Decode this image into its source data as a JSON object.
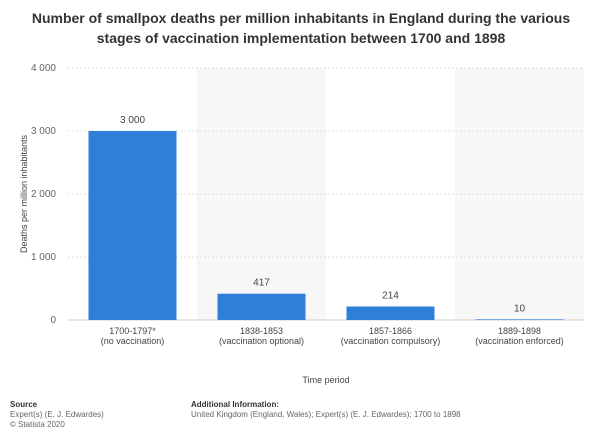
{
  "chart_data": {
    "type": "bar",
    "title": "Number of smallpox deaths per million inhabitants in England during the various stages of vaccination implementation between 1700 and 1898",
    "title_lines": [
      "Number of smallpox deaths per million inhabitants in England during the various",
      "stages of vaccination implementation between 1700 and 1898"
    ],
    "categories": [
      [
        "1700-1797*",
        "(no vaccination)"
      ],
      [
        "1838-1853",
        "(vaccination optional)"
      ],
      [
        "1857-1866",
        "(vaccination compulsory)"
      ],
      [
        "1889-1898",
        "(vaccination enforced)"
      ]
    ],
    "values": [
      3000,
      417,
      214,
      10
    ],
    "value_labels": [
      "3 000",
      "417",
      "214",
      "10"
    ],
    "ylim": [
      0,
      4000
    ],
    "yticks": [
      0,
      1000,
      2000,
      3000,
      4000
    ],
    "ytick_labels": [
      "0",
      "1 000",
      "2 000",
      "3 000",
      "4 000"
    ],
    "xlabel": "Time period",
    "ylabel": "Deaths per million inhabitants",
    "grid": true,
    "bar_color": "#2f7ed8",
    "band_color": "#f7f7f7"
  },
  "footer": {
    "source_heading": "Source",
    "source_lines": [
      "Expert(s) (E. J. Edwardes)",
      "© Statista 2020"
    ],
    "info_heading": "Additional Information:",
    "info_text": "United Kingdom (England, Wales); Expert(s) (E. J. Edwardes); 1700 to 1898"
  }
}
